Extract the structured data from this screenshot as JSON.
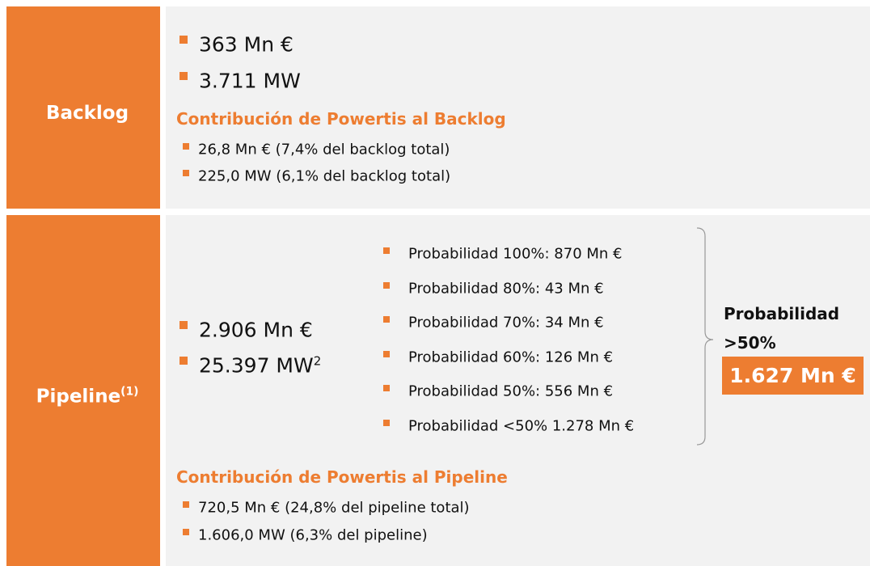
{
  "backlog": {
    "label": "Backlog",
    "items": [
      "363 Mn €",
      "3.711 MW"
    ],
    "contribution": {
      "title": "Contribución de Powertis al Backlog",
      "items": [
        "26,8 Mn € (7,4% del backlog total)",
        "225,0 MW  (6,1% del backlog total)"
      ]
    }
  },
  "pipeline": {
    "label": "Pipeline",
    "label_note": "(1)",
    "items": [
      {
        "text": "2.906 Mn €"
      },
      {
        "text": "25.397 MW",
        "note": "2"
      }
    ],
    "probabilities": [
      "Probabilidad 100%: 870 Mn €",
      "Probabilidad 80%: 43 Mn €",
      "Probabilidad 70%: 34 Mn €",
      "Probabilidad 60%: 126 Mn €",
      "Probabilidad 50%: 556 Mn €",
      "Probabilidad <50% 1.278 Mn €"
    ],
    "summary": {
      "title_lines": [
        "Probabilidad",
        ">50%"
      ],
      "value": "1.627 Mn €"
    },
    "contribution": {
      "title": "Contribución de Powertis al Pipeline",
      "items": [
        "720,5 Mn € (24,8% del pipeline total)",
        "1.606,0 MW (6,3% del pipeline)"
      ]
    }
  }
}
